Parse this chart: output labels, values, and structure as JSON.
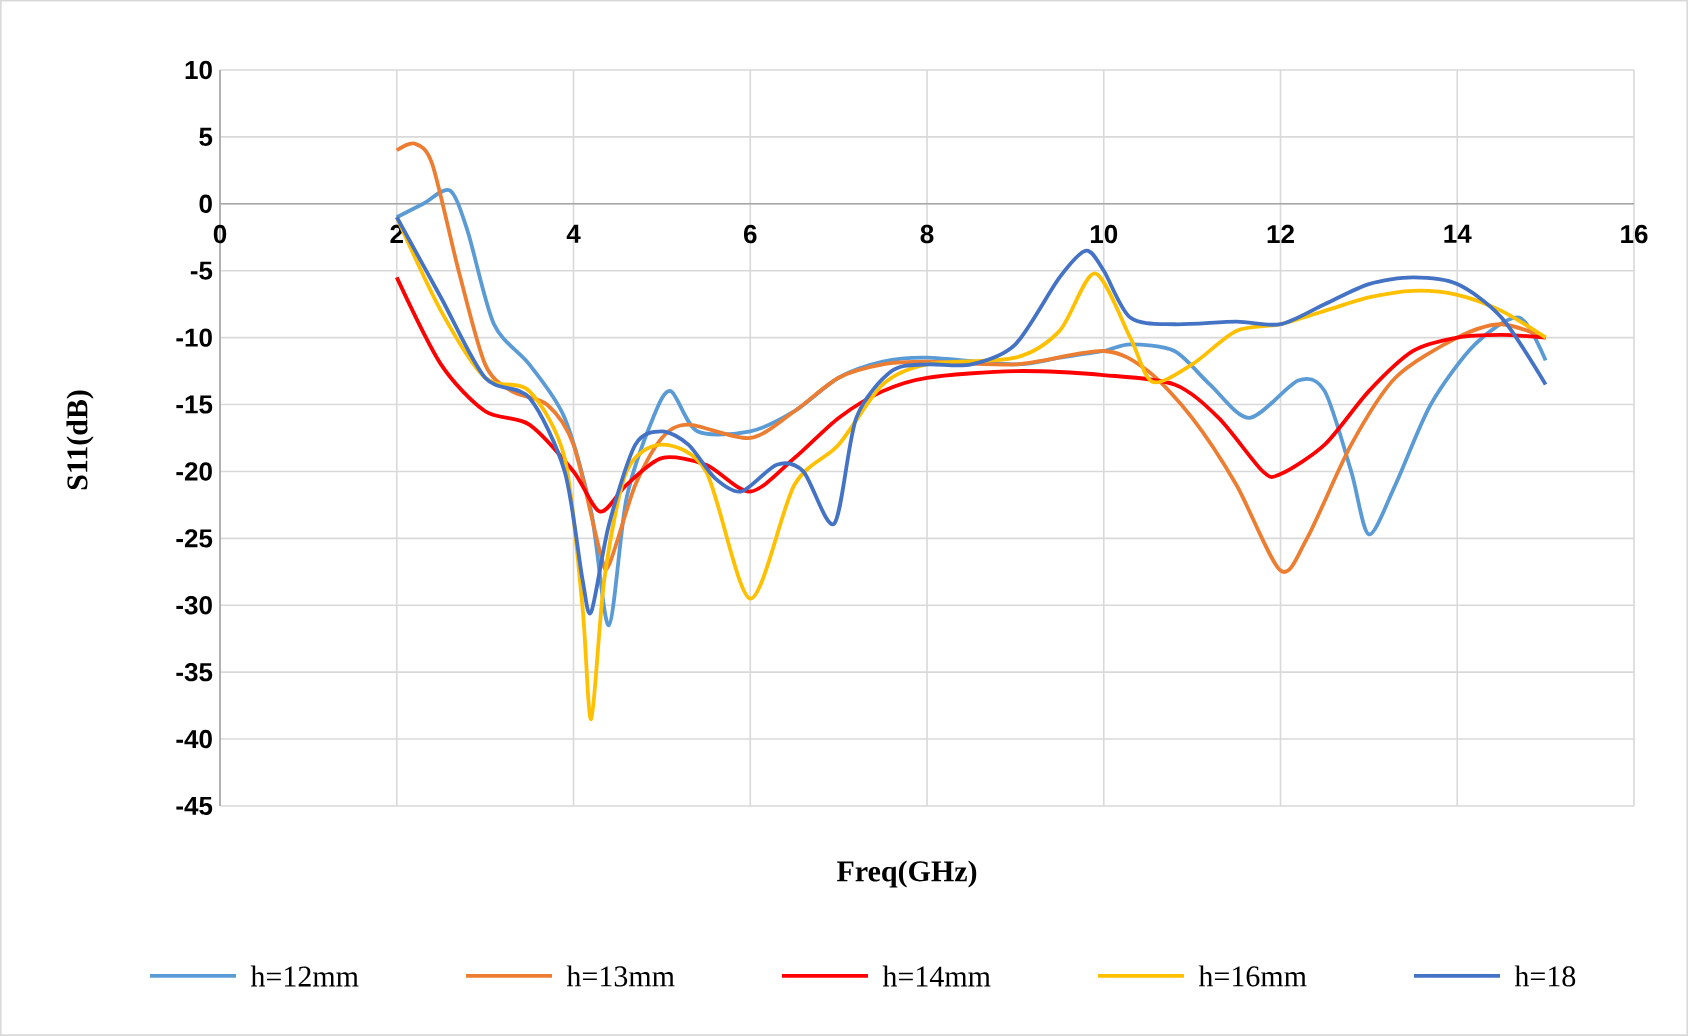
{
  "chart_data": {
    "type": "line",
    "xlabel": "Freq(GHz)",
    "ylabel": "S11(dB)",
    "xlim": [
      0,
      16
    ],
    "ylim": [
      -45,
      10
    ],
    "xticks": [
      0,
      2,
      4,
      6,
      8,
      10,
      12,
      14,
      16
    ],
    "yticks": [
      -45,
      -40,
      -35,
      -30,
      -25,
      -20,
      -15,
      -10,
      -5,
      0,
      5,
      10
    ],
    "grid": true,
    "legend": "bottom",
    "line_style": "solid",
    "marker": "none",
    "series": [
      {
        "name": "h=12mm",
        "color": "#5b9bd5",
        "x": [
          2,
          2.3,
          2.6,
          2.8,
          3.1,
          3.5,
          3.9,
          4.2,
          4.4,
          4.6,
          4.9,
          5.1,
          5.4,
          6,
          6.5,
          7,
          7.5,
          8,
          9,
          9.5,
          10,
          10.3,
          10.8,
          11.2,
          11.65,
          12.2,
          12.5,
          12.8,
          13,
          13.3,
          13.7,
          14.2,
          14.7,
          15
        ],
        "values": [
          -1,
          0,
          1,
          -2,
          -9,
          -12,
          -16,
          -23,
          -31.5,
          -22,
          -16,
          -14,
          -17,
          -17,
          -15.5,
          -13,
          -11.8,
          -11.5,
          -12,
          -11.5,
          -11,
          -10.5,
          -11,
          -13.5,
          -16,
          -13.2,
          -14,
          -20,
          -24.7,
          -21,
          -15,
          -10.5,
          -8.5,
          -11.7
        ]
      },
      {
        "name": "h=13mm",
        "color": "#ed7d31",
        "x": [
          2,
          2.2,
          2.4,
          2.7,
          3,
          3.3,
          3.7,
          4,
          4.3,
          4.4,
          4.7,
          5,
          5.3,
          6,
          6.5,
          7,
          7.5,
          8,
          9,
          10,
          10.5,
          11,
          11.5,
          12,
          12.3,
          12.8,
          13.3,
          14,
          14.5,
          15
        ],
        "values": [
          4,
          4.5,
          3,
          -5,
          -12,
          -14,
          -15,
          -18,
          -26,
          -27,
          -21,
          -17.5,
          -16.5,
          -17.5,
          -15.5,
          -13,
          -12,
          -11.8,
          -12,
          -11,
          -12.5,
          -16,
          -21,
          -27.4,
          -25,
          -18,
          -13,
          -10,
          -9,
          -10
        ]
      },
      {
        "name": "h=14mm",
        "color": "#ff0000",
        "x": [
          2,
          2.5,
          3,
          3.5,
          4,
          4.3,
          4.6,
          5,
          5.5,
          6,
          6.5,
          7,
          7.5,
          8,
          9,
          10,
          10.8,
          11.3,
          11.8,
          12,
          12.5,
          13,
          13.5,
          14,
          14.5,
          15
        ],
        "values": [
          -5.5,
          -12,
          -15.5,
          -16.5,
          -20,
          -23,
          -21,
          -19,
          -19.5,
          -21.5,
          -19,
          -16,
          -14,
          -13,
          -12.5,
          -12.8,
          -13.5,
          -16,
          -20,
          -20.2,
          -18,
          -14,
          -11,
          -10,
          -9.8,
          -10
        ]
      },
      {
        "name": "h=16mm",
        "color": "#ffc000",
        "x": [
          2,
          2.5,
          3,
          3.5,
          3.9,
          4.1,
          4.2,
          4.35,
          4.6,
          5,
          5.5,
          6,
          6.5,
          7,
          7.5,
          8,
          9,
          9.5,
          9.9,
          10.3,
          10.55,
          11,
          11.5,
          12,
          12.5,
          13,
          13.5,
          14,
          14.5,
          15
        ],
        "values": [
          -1,
          -8,
          -13,
          -14,
          -19,
          -30,
          -38.5,
          -28,
          -20,
          -18,
          -20,
          -29.5,
          -21,
          -18,
          -13.5,
          -12,
          -11.5,
          -9.5,
          -5.2,
          -10,
          -13.3,
          -12,
          -9.5,
          -9,
          -8,
          -7,
          -6.5,
          -6.8,
          -8,
          -10
        ]
      },
      {
        "name": "h=18",
        "color": "#4472c4",
        "x": [
          2,
          2.5,
          3,
          3.5,
          3.9,
          4.1,
          4.2,
          4.4,
          4.7,
          5,
          5.3,
          5.6,
          5.9,
          6.3,
          6.6,
          6.95,
          7.2,
          7.6,
          8,
          8.5,
          9,
          9.5,
          9.8,
          10,
          10.3,
          10.8,
          11.5,
          12,
          12.5,
          13,
          13.5,
          14,
          14.5,
          15
        ],
        "values": [
          -1,
          -7,
          -13,
          -14.5,
          -20,
          -28,
          -30.5,
          -24,
          -18,
          -17,
          -18,
          -20.5,
          -21.5,
          -19.5,
          -20,
          -23.9,
          -16,
          -12.5,
          -12,
          -12,
          -10.5,
          -5.5,
          -3.5,
          -5,
          -8.5,
          -9,
          -8.8,
          -9,
          -7.5,
          -6,
          -5.5,
          -6,
          -8.5,
          -13.5
        ]
      }
    ]
  }
}
